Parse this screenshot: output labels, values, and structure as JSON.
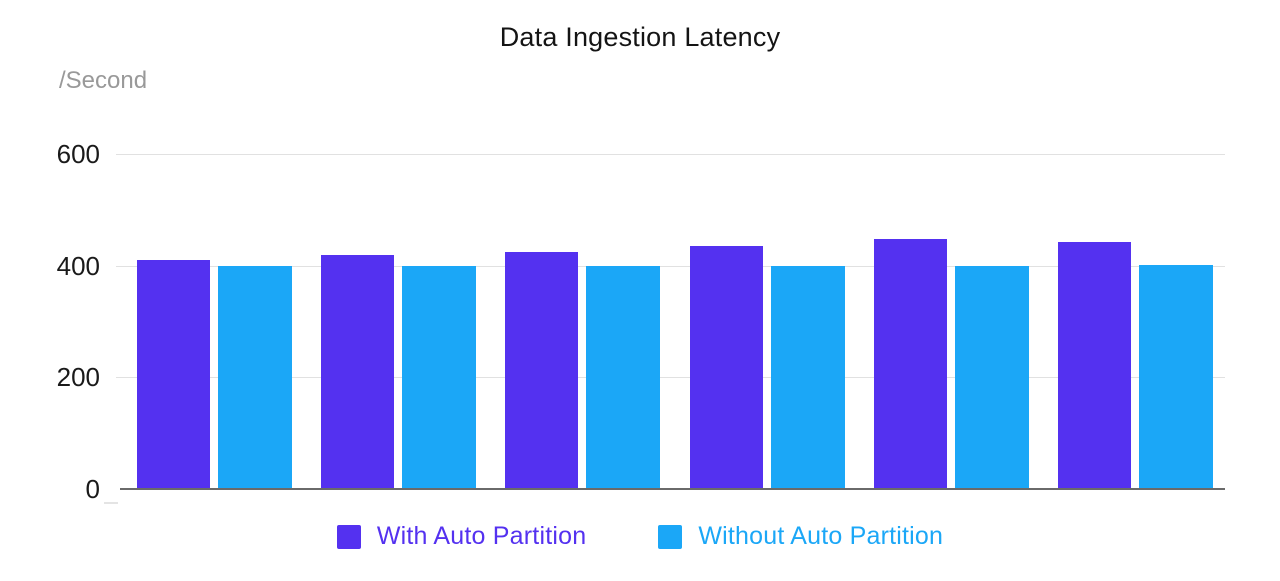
{
  "title": "Data Ingestion Latency",
  "y_axis": {
    "unit_label": "/Second",
    "ticks": [
      "600",
      "400",
      "200",
      "0"
    ]
  },
  "legend": {
    "items": [
      {
        "label": "With Auto Partition",
        "color": "#5431F0"
      },
      {
        "label": "Without Auto Partition",
        "color": "#1BA7F7"
      }
    ]
  },
  "chart_data": {
    "type": "bar",
    "title": "Data Ingestion Latency",
    "ylabel": "/Second",
    "xlabel": "",
    "ylim": [
      0,
      600
    ],
    "yticks": [
      0,
      200,
      400,
      600
    ],
    "grid": true,
    "legend_position": "bottom",
    "x_tick_labels_visible": false,
    "groups": 6,
    "series": [
      {
        "name": "With Auto Partition",
        "color": "#5431F0",
        "values": [
          411,
          419,
          425,
          436,
          448,
          443
        ]
      },
      {
        "name": "Without Auto Partition",
        "color": "#1BA7F7",
        "values": [
          400,
          400,
          400,
          400,
          400,
          401
        ]
      }
    ]
  }
}
